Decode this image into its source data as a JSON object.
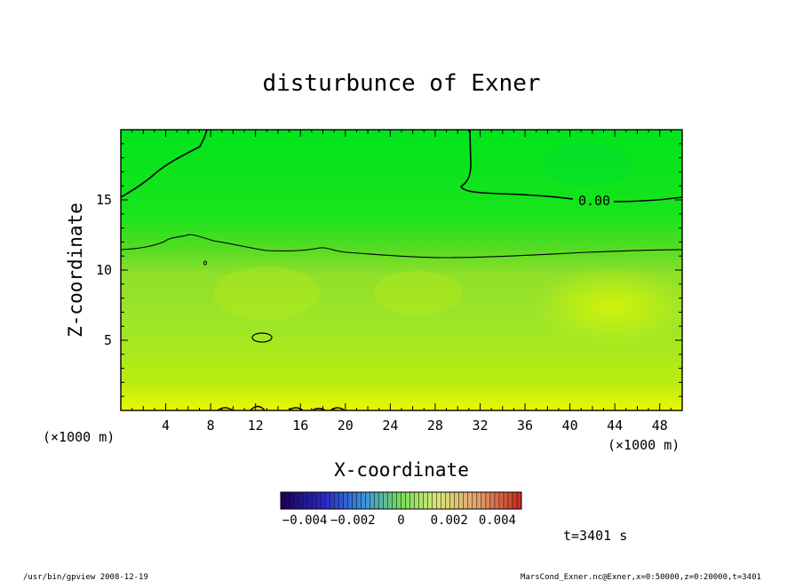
{
  "chart_data": {
    "type": "heatmap",
    "title": "disturbunce of Exner",
    "xlabel": "X-coordinate",
    "ylabel": "Z-coordinate",
    "x_unit_left": "(×1000 m)",
    "x_unit_right": "(×1000 m)",
    "xlim": [
      0,
      50
    ],
    "ylim": [
      0,
      20
    ],
    "x_ticks": [
      4,
      8,
      12,
      16,
      20,
      24,
      28,
      32,
      36,
      40,
      44,
      48
    ],
    "y_ticks": [
      5,
      10,
      15
    ],
    "contour_label": "0.00",
    "colorbar": {
      "range": [
        -0.005,
        0.005
      ],
      "tick_labels": [
        "−0.004",
        "−0.002",
        "0",
        "0.002",
        "0.004"
      ]
    },
    "time_label": "t=3401 s",
    "footer_left": "/usr/bin/gpview   2008-12-19",
    "footer_right": "MarsCond_Exner.nc@Exner,x=0:50000,z=0:20000,t=3401",
    "colors": {
      "top": "#00e61e",
      "middle": "#7fe028",
      "bottom": "#e0f800"
    }
  }
}
